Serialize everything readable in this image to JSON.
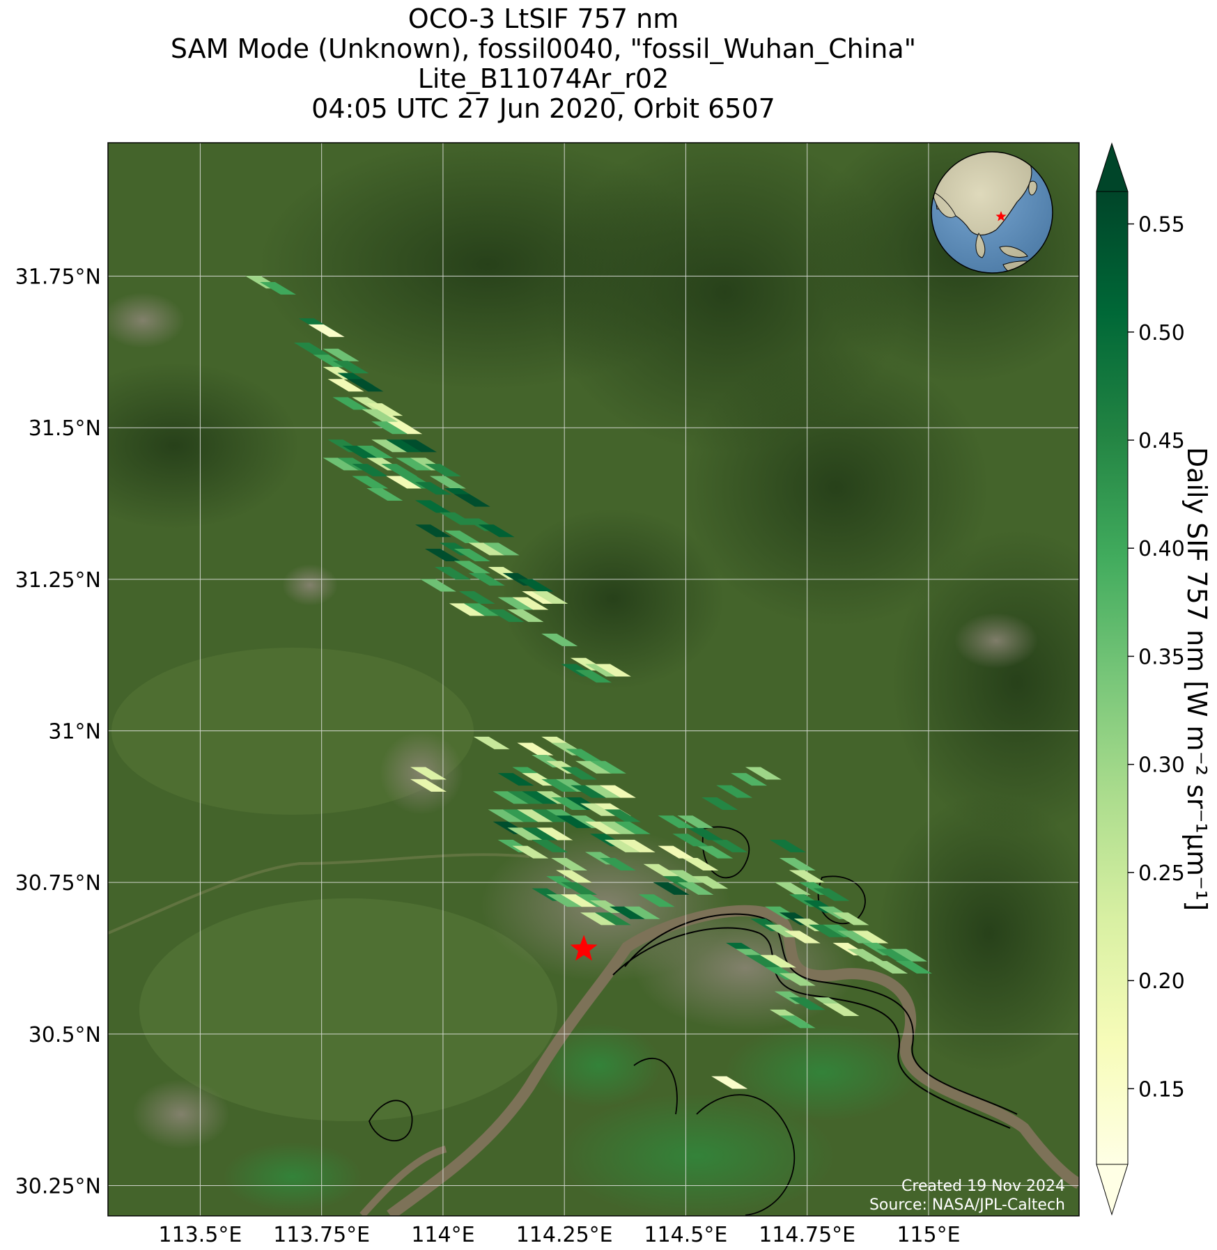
{
  "title": {
    "line1": "OCO-3 LtSIF 757 nm",
    "line2": "SAM Mode (Unknown), fossil0040, \"fossil_Wuhan_China\"",
    "line3": "Lite_B11074Ar_r02",
    "line4": "04:05 UTC 27 Jun 2020, Orbit 6507"
  },
  "map": {
    "lon_range": [
      113.31,
      115.31
    ],
    "lat_range": [
      30.2,
      31.97
    ],
    "lon_ticks": [
      113.5,
      113.75,
      114.0,
      114.25,
      114.5,
      114.75,
      115.0
    ],
    "lon_tick_labels": [
      "113.5°E",
      "113.75°E",
      "114°E",
      "114.25°E",
      "114.5°E",
      "114.75°E",
      "115°E"
    ],
    "lat_ticks": [
      30.25,
      30.5,
      30.75,
      31.0,
      31.25,
      31.5,
      31.75
    ],
    "lat_tick_labels": [
      "30.25°N",
      "30.5°N",
      "30.75°N",
      "31°N",
      "31.25°N",
      "31.5°N",
      "31.75°N"
    ],
    "target_site": {
      "name": "fossil_Wuhan_China",
      "lon": 114.29,
      "lat": 30.64,
      "marker": "red-star-icon",
      "color": "#ff0000"
    },
    "basemap": "satellite-imagery"
  },
  "sif_soundings": [
    {
      "lon": 113.63,
      "lat": 31.74,
      "v": 0.3
    },
    {
      "lon": 113.66,
      "lat": 31.73,
      "v": 0.4
    },
    {
      "lon": 113.74,
      "lat": 31.67,
      "v": 0.48
    },
    {
      "lon": 113.76,
      "lat": 31.66,
      "v": 0.15
    },
    {
      "lon": 113.73,
      "lat": 31.63,
      "v": 0.45
    },
    {
      "lon": 113.77,
      "lat": 31.61,
      "v": 0.4
    },
    {
      "lon": 113.79,
      "lat": 31.62,
      "v": 0.35
    },
    {
      "lon": 113.79,
      "lat": 31.59,
      "v": 0.22
    },
    {
      "lon": 113.81,
      "lat": 31.6,
      "v": 0.45
    },
    {
      "lon": 113.82,
      "lat": 31.58,
      "v": 0.52
    },
    {
      "lon": 113.8,
      "lat": 31.57,
      "v": 0.18
    },
    {
      "lon": 113.84,
      "lat": 31.57,
      "v": 0.55
    },
    {
      "lon": 113.81,
      "lat": 31.54,
      "v": 0.4
    },
    {
      "lon": 113.85,
      "lat": 31.54,
      "v": 0.25
    },
    {
      "lon": 113.88,
      "lat": 31.53,
      "v": 0.22
    },
    {
      "lon": 113.9,
      "lat": 31.51,
      "v": 0.2
    },
    {
      "lon": 113.92,
      "lat": 31.5,
      "v": 0.18
    },
    {
      "lon": 113.87,
      "lat": 31.52,
      "v": 0.3
    },
    {
      "lon": 113.89,
      "lat": 31.5,
      "v": 0.38
    },
    {
      "lon": 113.8,
      "lat": 31.47,
      "v": 0.45
    },
    {
      "lon": 113.83,
      "lat": 31.46,
      "v": 0.5
    },
    {
      "lon": 113.86,
      "lat": 31.46,
      "v": 0.4
    },
    {
      "lon": 113.89,
      "lat": 31.47,
      "v": 0.3
    },
    {
      "lon": 113.92,
      "lat": 31.47,
      "v": 0.52
    },
    {
      "lon": 113.95,
      "lat": 31.47,
      "v": 0.55
    },
    {
      "lon": 113.79,
      "lat": 31.44,
      "v": 0.35
    },
    {
      "lon": 113.82,
      "lat": 31.44,
      "v": 0.42
    },
    {
      "lon": 113.85,
      "lat": 31.43,
      "v": 0.48
    },
    {
      "lon": 113.88,
      "lat": 31.44,
      "v": 0.25
    },
    {
      "lon": 113.91,
      "lat": 31.43,
      "v": 0.42
    },
    {
      "lon": 113.94,
      "lat": 31.44,
      "v": 0.38
    },
    {
      "lon": 113.97,
      "lat": 31.44,
      "v": 0.3
    },
    {
      "lon": 114.0,
      "lat": 31.43,
      "v": 0.45
    },
    {
      "lon": 113.85,
      "lat": 31.41,
      "v": 0.4
    },
    {
      "lon": 113.88,
      "lat": 31.39,
      "v": 0.38
    },
    {
      "lon": 113.92,
      "lat": 31.41,
      "v": 0.18
    },
    {
      "lon": 113.95,
      "lat": 31.41,
      "v": 0.42
    },
    {
      "lon": 113.98,
      "lat": 31.4,
      "v": 0.48
    },
    {
      "lon": 114.01,
      "lat": 31.41,
      "v": 0.35
    },
    {
      "lon": 114.04,
      "lat": 31.39,
      "v": 0.52
    },
    {
      "lon": 114.06,
      "lat": 31.38,
      "v": 0.55
    },
    {
      "lon": 113.98,
      "lat": 31.37,
      "v": 0.5
    },
    {
      "lon": 114.03,
      "lat": 31.35,
      "v": 0.45
    },
    {
      "lon": 113.98,
      "lat": 31.33,
      "v": 0.55
    },
    {
      "lon": 114.04,
      "lat": 31.32,
      "v": 0.38
    },
    {
      "lon": 114.08,
      "lat": 31.34,
      "v": 0.45
    },
    {
      "lon": 114.11,
      "lat": 31.33,
      "v": 0.52
    },
    {
      "lon": 114.0,
      "lat": 31.29,
      "v": 0.55
    },
    {
      "lon": 114.03,
      "lat": 31.3,
      "v": 0.48
    },
    {
      "lon": 114.06,
      "lat": 31.29,
      "v": 0.4
    },
    {
      "lon": 114.09,
      "lat": 31.3,
      "v": 0.25
    },
    {
      "lon": 114.12,
      "lat": 31.3,
      "v": 0.35
    },
    {
      "lon": 114.02,
      "lat": 31.26,
      "v": 0.45
    },
    {
      "lon": 114.06,
      "lat": 31.27,
      "v": 0.38
    },
    {
      "lon": 114.09,
      "lat": 31.25,
      "v": 0.42
    },
    {
      "lon": 114.13,
      "lat": 31.26,
      "v": 0.22
    },
    {
      "lon": 114.16,
      "lat": 31.25,
      "v": 0.55
    },
    {
      "lon": 114.19,
      "lat": 31.24,
      "v": 0.52
    },
    {
      "lon": 113.99,
      "lat": 31.24,
      "v": 0.35
    },
    {
      "lon": 114.07,
      "lat": 31.22,
      "v": 0.45
    },
    {
      "lon": 114.05,
      "lat": 31.2,
      "v": 0.2
    },
    {
      "lon": 114.08,
      "lat": 31.2,
      "v": 0.4
    },
    {
      "lon": 114.15,
      "lat": 31.21,
      "v": 0.35
    },
    {
      "lon": 114.18,
      "lat": 31.21,
      "v": 0.2
    },
    {
      "lon": 114.2,
      "lat": 31.22,
      "v": 0.18
    },
    {
      "lon": 114.22,
      "lat": 31.22,
      "v": 0.25
    },
    {
      "lon": 114.13,
      "lat": 31.19,
      "v": 0.45
    },
    {
      "lon": 114.17,
      "lat": 31.19,
      "v": 0.3
    },
    {
      "lon": 114.24,
      "lat": 31.15,
      "v": 0.35
    },
    {
      "lon": 114.3,
      "lat": 31.11,
      "v": 0.22
    },
    {
      "lon": 114.33,
      "lat": 31.1,
      "v": 0.3
    },
    {
      "lon": 114.35,
      "lat": 31.1,
      "v": 0.2
    },
    {
      "lon": 114.28,
      "lat": 31.1,
      "v": 0.48
    },
    {
      "lon": 114.31,
      "lat": 31.09,
      "v": 0.42
    },
    {
      "lon": 114.1,
      "lat": 30.98,
      "v": 0.25
    },
    {
      "lon": 113.97,
      "lat": 30.93,
      "v": 0.22
    },
    {
      "lon": 113.97,
      "lat": 30.91,
      "v": 0.2
    },
    {
      "lon": 114.19,
      "lat": 30.97,
      "v": 0.18
    },
    {
      "lon": 114.24,
      "lat": 30.98,
      "v": 0.22
    },
    {
      "lon": 114.26,
      "lat": 30.97,
      "v": 0.3
    },
    {
      "lon": 114.29,
      "lat": 30.96,
      "v": 0.4
    },
    {
      "lon": 114.22,
      "lat": 30.95,
      "v": 0.35
    },
    {
      "lon": 114.25,
      "lat": 30.94,
      "v": 0.25
    },
    {
      "lon": 114.28,
      "lat": 30.93,
      "v": 0.45
    },
    {
      "lon": 114.31,
      "lat": 30.94,
      "v": 0.3
    },
    {
      "lon": 114.34,
      "lat": 30.94,
      "v": 0.38
    },
    {
      "lon": 114.18,
      "lat": 30.93,
      "v": 0.4
    },
    {
      "lon": 114.15,
      "lat": 30.92,
      "v": 0.52
    },
    {
      "lon": 114.2,
      "lat": 30.92,
      "v": 0.22
    },
    {
      "lon": 114.24,
      "lat": 30.91,
      "v": 0.42
    },
    {
      "lon": 114.27,
      "lat": 30.91,
      "v": 0.35
    },
    {
      "lon": 114.3,
      "lat": 30.9,
      "v": 0.48
    },
    {
      "lon": 114.33,
      "lat": 30.9,
      "v": 0.3
    },
    {
      "lon": 114.36,
      "lat": 30.9,
      "v": 0.18
    },
    {
      "lon": 114.14,
      "lat": 30.89,
      "v": 0.38
    },
    {
      "lon": 114.17,
      "lat": 30.89,
      "v": 0.45
    },
    {
      "lon": 114.2,
      "lat": 30.89,
      "v": 0.5
    },
    {
      "lon": 114.23,
      "lat": 30.89,
      "v": 0.28
    },
    {
      "lon": 114.26,
      "lat": 30.88,
      "v": 0.4
    },
    {
      "lon": 114.29,
      "lat": 30.88,
      "v": 0.52
    },
    {
      "lon": 114.13,
      "lat": 30.86,
      "v": 0.35
    },
    {
      "lon": 114.16,
      "lat": 30.86,
      "v": 0.42
    },
    {
      "lon": 114.19,
      "lat": 30.86,
      "v": 0.25
    },
    {
      "lon": 114.22,
      "lat": 30.86,
      "v": 0.45
    },
    {
      "lon": 114.25,
      "lat": 30.86,
      "v": 0.38
    },
    {
      "lon": 114.32,
      "lat": 30.87,
      "v": 0.25
    },
    {
      "lon": 114.35,
      "lat": 30.87,
      "v": 0.2
    },
    {
      "lon": 114.37,
      "lat": 30.86,
      "v": 0.45
    },
    {
      "lon": 114.14,
      "lat": 30.84,
      "v": 0.55
    },
    {
      "lon": 114.17,
      "lat": 30.83,
      "v": 0.3
    },
    {
      "lon": 114.2,
      "lat": 30.83,
      "v": 0.48
    },
    {
      "lon": 114.23,
      "lat": 30.83,
      "v": 0.2
    },
    {
      "lon": 114.27,
      "lat": 30.85,
      "v": 0.52
    },
    {
      "lon": 114.3,
      "lat": 30.85,
      "v": 0.35
    },
    {
      "lon": 114.33,
      "lat": 30.84,
      "v": 0.22
    },
    {
      "lon": 114.36,
      "lat": 30.84,
      "v": 0.3
    },
    {
      "lon": 114.39,
      "lat": 30.84,
      "v": 0.4
    },
    {
      "lon": 114.15,
      "lat": 30.81,
      "v": 0.38
    },
    {
      "lon": 114.18,
      "lat": 30.8,
      "v": 0.25
    },
    {
      "lon": 114.22,
      "lat": 30.81,
      "v": 0.45
    },
    {
      "lon": 114.34,
      "lat": 30.82,
      "v": 0.5
    },
    {
      "lon": 114.37,
      "lat": 30.81,
      "v": 0.25
    },
    {
      "lon": 114.4,
      "lat": 30.81,
      "v": 0.2
    },
    {
      "lon": 114.33,
      "lat": 30.79,
      "v": 0.35
    },
    {
      "lon": 114.36,
      "lat": 30.78,
      "v": 0.42
    },
    {
      "lon": 114.26,
      "lat": 30.78,
      "v": 0.3
    },
    {
      "lon": 114.27,
      "lat": 30.76,
      "v": 0.22
    },
    {
      "lon": 114.25,
      "lat": 30.75,
      "v": 0.4
    },
    {
      "lon": 114.28,
      "lat": 30.74,
      "v": 0.45
    },
    {
      "lon": 114.22,
      "lat": 30.73,
      "v": 0.48
    },
    {
      "lon": 114.25,
      "lat": 30.72,
      "v": 0.35
    },
    {
      "lon": 114.28,
      "lat": 30.72,
      "v": 0.2
    },
    {
      "lon": 114.31,
      "lat": 30.72,
      "v": 0.38
    },
    {
      "lon": 114.34,
      "lat": 30.71,
      "v": 0.3
    },
    {
      "lon": 114.32,
      "lat": 30.69,
      "v": 0.25
    },
    {
      "lon": 114.35,
      "lat": 30.69,
      "v": 0.45
    },
    {
      "lon": 114.38,
      "lat": 30.7,
      "v": 0.52
    },
    {
      "lon": 114.41,
      "lat": 30.7,
      "v": 0.35
    },
    {
      "lon": 114.44,
      "lat": 30.72,
      "v": 0.4
    },
    {
      "lon": 114.47,
      "lat": 30.74,
      "v": 0.55
    },
    {
      "lon": 114.5,
      "lat": 30.76,
      "v": 0.3
    },
    {
      "lon": 114.53,
      "lat": 30.78,
      "v": 0.22
    },
    {
      "lon": 114.56,
      "lat": 30.8,
      "v": 0.38
    },
    {
      "lon": 114.59,
      "lat": 30.81,
      "v": 0.45
    },
    {
      "lon": 114.48,
      "lat": 30.8,
      "v": 0.18
    },
    {
      "lon": 114.51,
      "lat": 30.82,
      "v": 0.42
    },
    {
      "lon": 114.54,
      "lat": 30.83,
      "v": 0.48
    },
    {
      "lon": 114.45,
      "lat": 30.77,
      "v": 0.25
    },
    {
      "lon": 114.49,
      "lat": 30.75,
      "v": 0.45
    },
    {
      "lon": 114.52,
      "lat": 30.74,
      "v": 0.35
    },
    {
      "lon": 114.55,
      "lat": 30.75,
      "v": 0.28
    },
    {
      "lon": 114.48,
      "lat": 30.85,
      "v": 0.4
    },
    {
      "lon": 114.52,
      "lat": 30.85,
      "v": 0.35
    },
    {
      "lon": 114.57,
      "lat": 30.88,
      "v": 0.45
    },
    {
      "lon": 114.6,
      "lat": 30.9,
      "v": 0.42
    },
    {
      "lon": 114.63,
      "lat": 30.92,
      "v": 0.38
    },
    {
      "lon": 114.66,
      "lat": 30.93,
      "v": 0.3
    },
    {
      "lon": 114.71,
      "lat": 30.81,
      "v": 0.48
    },
    {
      "lon": 114.73,
      "lat": 30.78,
      "v": 0.35
    },
    {
      "lon": 114.75,
      "lat": 30.76,
      "v": 0.25
    },
    {
      "lon": 114.77,
      "lat": 30.74,
      "v": 0.4
    },
    {
      "lon": 114.8,
      "lat": 30.73,
      "v": 0.45
    },
    {
      "lon": 114.72,
      "lat": 30.74,
      "v": 0.3
    },
    {
      "lon": 114.75,
      "lat": 30.72,
      "v": 0.42
    },
    {
      "lon": 114.78,
      "lat": 30.71,
      "v": 0.5
    },
    {
      "lon": 114.81,
      "lat": 30.7,
      "v": 0.35
    },
    {
      "lon": 114.84,
      "lat": 30.69,
      "v": 0.28
    },
    {
      "lon": 114.7,
      "lat": 30.7,
      "v": 0.38
    },
    {
      "lon": 114.73,
      "lat": 30.69,
      "v": 0.55
    },
    {
      "lon": 114.76,
      "lat": 30.68,
      "v": 0.25
    },
    {
      "lon": 114.79,
      "lat": 30.67,
      "v": 0.45
    },
    {
      "lon": 114.82,
      "lat": 30.67,
      "v": 0.4
    },
    {
      "lon": 114.85,
      "lat": 30.66,
      "v": 0.35
    },
    {
      "lon": 114.88,
      "lat": 30.66,
      "v": 0.22
    },
    {
      "lon": 114.67,
      "lat": 30.68,
      "v": 0.48
    },
    {
      "lon": 114.7,
      "lat": 30.67,
      "v": 0.3
    },
    {
      "lon": 114.74,
      "lat": 30.66,
      "v": 0.2
    },
    {
      "lon": 114.84,
      "lat": 30.64,
      "v": 0.18
    },
    {
      "lon": 114.87,
      "lat": 30.63,
      "v": 0.3
    },
    {
      "lon": 114.9,
      "lat": 30.64,
      "v": 0.38
    },
    {
      "lon": 114.93,
      "lat": 30.63,
      "v": 0.42
    },
    {
      "lon": 114.96,
      "lat": 30.63,
      "v": 0.35
    },
    {
      "lon": 114.97,
      "lat": 30.61,
      "v": 0.4
    },
    {
      "lon": 114.92,
      "lat": 30.61,
      "v": 0.3
    },
    {
      "lon": 114.62,
      "lat": 30.64,
      "v": 0.5
    },
    {
      "lon": 114.64,
      "lat": 30.63,
      "v": 0.35
    },
    {
      "lon": 114.66,
      "lat": 30.62,
      "v": 0.45
    },
    {
      "lon": 114.69,
      "lat": 30.62,
      "v": 0.22
    },
    {
      "lon": 114.7,
      "lat": 30.6,
      "v": 0.4
    },
    {
      "lon": 114.73,
      "lat": 30.59,
      "v": 0.3
    },
    {
      "lon": 114.72,
      "lat": 30.56,
      "v": 0.35
    },
    {
      "lon": 114.75,
      "lat": 30.55,
      "v": 0.45
    },
    {
      "lon": 114.71,
      "lat": 30.53,
      "v": 0.28
    },
    {
      "lon": 114.73,
      "lat": 30.52,
      "v": 0.38
    },
    {
      "lon": 114.8,
      "lat": 30.55,
      "v": 0.3
    },
    {
      "lon": 114.82,
      "lat": 30.54,
      "v": 0.25
    },
    {
      "lon": 114.59,
      "lat": 30.42,
      "v": 0.15
    }
  ],
  "colorbar": {
    "label": "Daily SIF 757 nm [W m⁻² sr⁻¹μm⁻¹]",
    "colormap": "YlGn",
    "vmin": 0.115,
    "vmax": 0.565,
    "extend": "both",
    "ticks": [
      0.15,
      0.2,
      0.25,
      0.3,
      0.35,
      0.4,
      0.45,
      0.5,
      0.55
    ],
    "tick_labels": [
      "0.15",
      "0.20",
      "0.25",
      "0.30",
      "0.35",
      "0.40",
      "0.45",
      "0.50",
      "0.55"
    ],
    "stops": [
      "#ffffe5",
      "#f7fcb9",
      "#d9f0a3",
      "#addd8e",
      "#78c679",
      "#41ab5d",
      "#238443",
      "#006837",
      "#004529"
    ]
  },
  "inset_globe": {
    "name": "globe-locator",
    "marker": "red-star-icon",
    "marker_color": "#ff0000",
    "ocean_color": "#5f95c8",
    "land_color": "#d9d3b0"
  },
  "credits": {
    "created": "Created 19 Nov 2024",
    "source": "Source: NASA/JPL-Caltech"
  },
  "colors": {
    "river": "#7d7258",
    "lake": "#3f7f3a",
    "terrain_dark": "#2e4a1f",
    "terrain_mid": "#4a6a30",
    "urban": "#8a8478",
    "grid": "#e8e8e8"
  }
}
